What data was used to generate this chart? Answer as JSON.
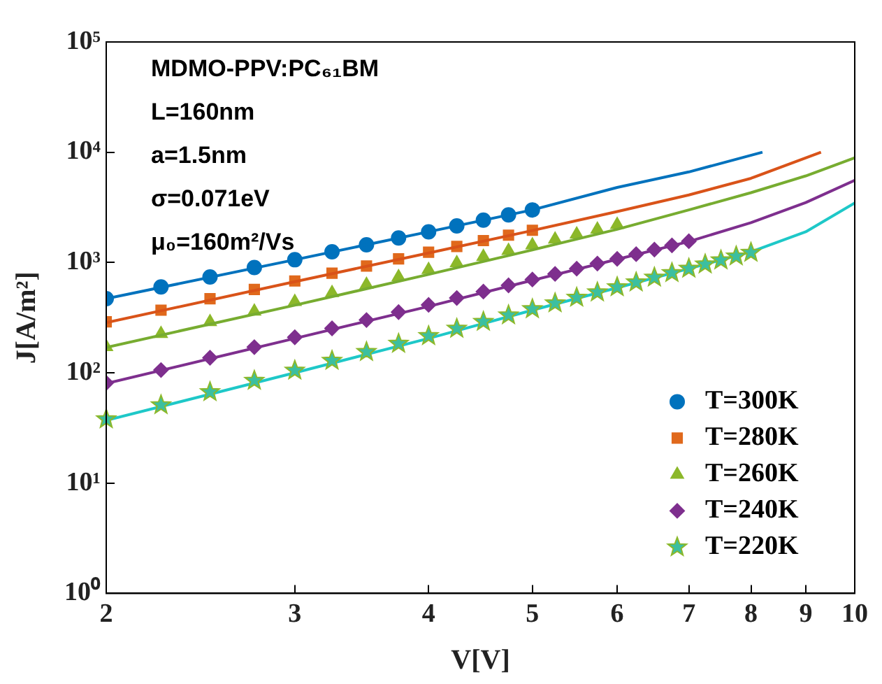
{
  "chart_data": {
    "type": "scatter",
    "xlabel": "V[V]",
    "ylabel": "J[A/m²]",
    "log": "xy",
    "grid": false,
    "legend": "bottom right",
    "xlim": [
      2,
      10
    ],
    "xticks": [
      2,
      3,
      4,
      5,
      6,
      7,
      8,
      9,
      10
    ],
    "ylim": [
      1,
      100000
    ],
    "yticks": [
      {
        "value": 1,
        "label": "10⁰"
      },
      {
        "value": 10,
        "label": "10¹"
      },
      {
        "value": 100,
        "label": "10²"
      },
      {
        "value": 1000,
        "label": "10³"
      },
      {
        "value": 10000,
        "label": "10⁴"
      },
      {
        "value": 100000,
        "label": "10⁵"
      }
    ],
    "annotations": [
      "MDMO-PPV:PC₆₁BM",
      "L=160nm",
      "a=1.5nm",
      "σ=0.071eV",
      "μ₀=160m²/Vs"
    ],
    "series": [
      {
        "name": "T=300K",
        "type": "scatter",
        "marker": "circle",
        "color": "#0072bd",
        "x": [
          2,
          2.25,
          2.5,
          2.75,
          3,
          3.25,
          3.5,
          3.75,
          4,
          4.25,
          4.5,
          4.75,
          5
        ],
        "values": [
          470,
          600,
          740,
          900,
          1060,
          1250,
          1450,
          1670,
          1900,
          2150,
          2420,
          2700,
          3000
        ]
      },
      {
        "name": "T=280K",
        "type": "scatter",
        "marker": "square",
        "color": "#e0691c",
        "x": [
          2,
          2.25,
          2.5,
          2.75,
          3,
          3.25,
          3.5,
          3.75,
          4,
          4.25,
          4.5,
          4.75,
          5
        ],
        "values": [
          290,
          370,
          470,
          570,
          680,
          800,
          930,
          1080,
          1240,
          1400,
          1580,
          1770,
          1960
        ]
      },
      {
        "name": "T=260K",
        "type": "scatter",
        "marker": "triangle",
        "color": "#8cb82a",
        "x": [
          2,
          2.25,
          2.5,
          2.75,
          3,
          3.25,
          3.5,
          3.75,
          4,
          4.25,
          4.5,
          4.75,
          5,
          5.25,
          5.5,
          5.75,
          6
        ],
        "values": [
          172,
          226,
          289,
          360,
          440,
          530,
          630,
          740,
          860,
          990,
          1130,
          1280,
          1440,
          1620,
          1800,
          2000,
          2200
        ]
      },
      {
        "name": "T=240K",
        "type": "scatter",
        "marker": "diamond",
        "color": "#7e2f8e",
        "x": [
          2,
          2.25,
          2.5,
          2.75,
          3,
          3.25,
          3.5,
          3.75,
          4,
          4.25,
          4.5,
          4.75,
          5,
          5.25,
          5.5,
          5.75,
          6,
          6.25,
          6.5,
          6.75,
          7
        ],
        "values": [
          81,
          106,
          137,
          171,
          210,
          253,
          301,
          355,
          413,
          477,
          545,
          621,
          701,
          788,
          880,
          979,
          1080,
          1190,
          1310,
          1430,
          1560
        ]
      },
      {
        "name": "T=220K",
        "type": "scatter",
        "marker": "star",
        "color": "#3cbfa0",
        "x": [
          2,
          2.25,
          2.5,
          2.75,
          3,
          3.25,
          3.5,
          3.75,
          4,
          4.25,
          4.5,
          4.75,
          5,
          5.25,
          5.5,
          5.75,
          6,
          6.25,
          6.5,
          6.75,
          7,
          7.25,
          7.5,
          7.75,
          8
        ],
        "values": [
          38,
          51,
          67,
          85,
          105,
          129,
          155,
          184,
          216,
          252,
          291,
          333,
          379,
          428,
          481,
          538,
          599,
          663,
          732,
          805,
          882,
          964,
          1050,
          1140,
          1230
        ]
      },
      {
        "type": "line",
        "marker": "none",
        "color": "#0072bd",
        "x": [
          2,
          3,
          4,
          5,
          6,
          7,
          8.2
        ],
        "values": [
          470,
          1060,
          1900,
          3000,
          4800,
          6630,
          10000
        ]
      },
      {
        "type": "line",
        "marker": "none",
        "color": "#d95319",
        "x": [
          2,
          3,
          4,
          5,
          6,
          7,
          8,
          9.3
        ],
        "values": [
          285,
          670,
          1220,
          1950,
          2900,
          4100,
          5800,
          10000
        ]
      },
      {
        "type": "line",
        "marker": "none",
        "color": "#77ac30",
        "x": [
          2,
          3,
          4,
          5,
          6,
          7,
          8,
          9,
          10
        ],
        "values": [
          170,
          410,
          780,
          1300,
          2000,
          3000,
          4300,
          6100,
          8900
        ]
      },
      {
        "type": "line",
        "marker": "none",
        "color": "#7e2f8e",
        "x": [
          2,
          3,
          4,
          5,
          6,
          7,
          8,
          9,
          10
        ],
        "values": [
          80,
          205,
          400,
          690,
          1070,
          1550,
          2300,
          3500,
          5560
        ]
      },
      {
        "type": "line",
        "marker": "none",
        "color": "#1ec8c8",
        "x": [
          2,
          3,
          4,
          5,
          6,
          7,
          8,
          9,
          10
        ],
        "values": [
          37,
          100,
          205,
          370,
          590,
          880,
          1250,
          1900,
          3470
        ]
      }
    ]
  }
}
